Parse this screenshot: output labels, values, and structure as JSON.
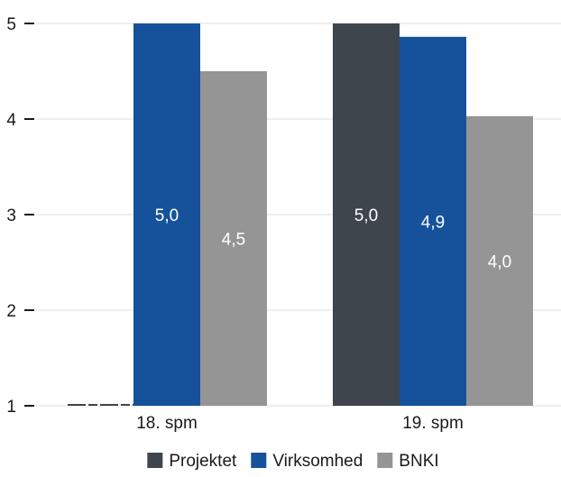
{
  "chart_data": {
    "type": "bar",
    "title": "",
    "xlabel": "",
    "ylabel": "",
    "ylim": [
      1,
      5
    ],
    "yticks": [
      "1",
      "2",
      "3",
      "4",
      "5"
    ],
    "grid": true,
    "legend": "bottom",
    "categories": [
      "18. spm",
      "19. spm"
    ],
    "series": [
      {
        "name": "Projektet",
        "color": "#3f454d",
        "values": [
          null,
          5.0
        ],
        "labels": [
          "",
          "5,0"
        ]
      },
      {
        "name": "Virksomhed",
        "color": "#15529b",
        "values": [
          5.0,
          4.86
        ],
        "labels": [
          "5,0",
          "4,9"
        ]
      },
      {
        "name": "BNKI",
        "color": "#959595",
        "values": [
          4.5,
          4.03
        ],
        "labels": [
          "4,5",
          "4,0"
        ]
      }
    ]
  }
}
